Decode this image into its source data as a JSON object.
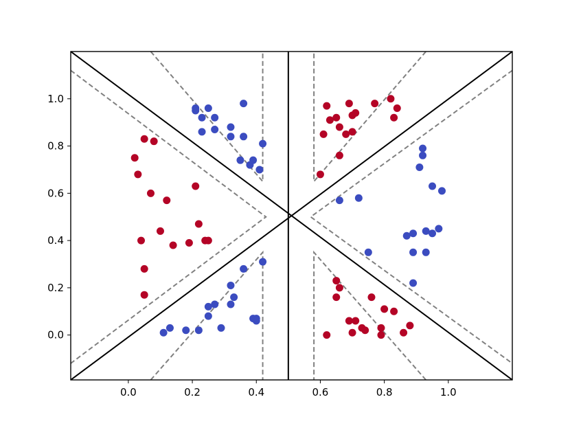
{
  "chart_data": {
    "type": "scatter",
    "title": "",
    "xlabel": "",
    "ylabel": "",
    "xlim": [
      -0.18,
      1.2
    ],
    "ylim": [
      -0.19,
      1.2
    ],
    "grid": false,
    "legend": "none",
    "x_ticks": [
      "0.0",
      "0.2",
      "0.4",
      "0.6",
      "0.8",
      "1.0"
    ],
    "y_ticks": [
      "0.0",
      "0.2",
      "0.4",
      "0.6",
      "0.8",
      "1.0"
    ],
    "colors": {
      "class_a": "#b40426",
      "class_b": "#3b4cc0",
      "boundary": "#000000",
      "margin": "#808080"
    },
    "series": [
      {
        "class": "a",
        "color": "#b40426",
        "points": [
          [
            0.05,
            0.83
          ],
          [
            0.08,
            0.82
          ],
          [
            0.02,
            0.75
          ],
          [
            0.03,
            0.68
          ],
          [
            0.07,
            0.6
          ],
          [
            0.12,
            0.57
          ],
          [
            0.21,
            0.63
          ],
          [
            0.22,
            0.47
          ],
          [
            0.1,
            0.44
          ],
          [
            0.04,
            0.4
          ],
          [
            0.14,
            0.38
          ],
          [
            0.19,
            0.39
          ],
          [
            0.24,
            0.4
          ],
          [
            0.25,
            0.4
          ],
          [
            0.05,
            0.28
          ],
          [
            0.05,
            0.17
          ],
          [
            0.62,
            0.97
          ],
          [
            0.63,
            0.91
          ],
          [
            0.65,
            0.92
          ],
          [
            0.66,
            0.88
          ],
          [
            0.69,
            0.98
          ],
          [
            0.7,
            0.93
          ],
          [
            0.71,
            0.94
          ],
          [
            0.77,
            0.98
          ],
          [
            0.82,
            1.0
          ],
          [
            0.84,
            0.96
          ],
          [
            0.83,
            0.92
          ],
          [
            0.61,
            0.85
          ],
          [
            0.68,
            0.85
          ],
          [
            0.7,
            0.86
          ],
          [
            0.66,
            0.76
          ],
          [
            0.6,
            0.68
          ],
          [
            0.65,
            0.23
          ],
          [
            0.66,
            0.2
          ],
          [
            0.65,
            0.16
          ],
          [
            0.76,
            0.16
          ],
          [
            0.8,
            0.11
          ],
          [
            0.83,
            0.1
          ],
          [
            0.69,
            0.06
          ],
          [
            0.71,
            0.06
          ],
          [
            0.73,
            0.03
          ],
          [
            0.74,
            0.02
          ],
          [
            0.7,
            0.01
          ],
          [
            0.62,
            0.0
          ],
          [
            0.79,
            0.03
          ],
          [
            0.79,
            0.0
          ],
          [
            0.86,
            0.01
          ],
          [
            0.88,
            0.04
          ]
        ]
      },
      {
        "class": "b",
        "color": "#3b4cc0",
        "points": [
          [
            0.36,
            0.98
          ],
          [
            0.21,
            0.95
          ],
          [
            0.21,
            0.96
          ],
          [
            0.25,
            0.96
          ],
          [
            0.23,
            0.92
          ],
          [
            0.27,
            0.92
          ],
          [
            0.23,
            0.86
          ],
          [
            0.27,
            0.87
          ],
          [
            0.32,
            0.88
          ],
          [
            0.32,
            0.84
          ],
          [
            0.36,
            0.84
          ],
          [
            0.42,
            0.81
          ],
          [
            0.35,
            0.74
          ],
          [
            0.38,
            0.72
          ],
          [
            0.39,
            0.74
          ],
          [
            0.41,
            0.7
          ],
          [
            0.92,
            0.79
          ],
          [
            0.92,
            0.76
          ],
          [
            0.91,
            0.71
          ],
          [
            0.95,
            0.63
          ],
          [
            0.98,
            0.61
          ],
          [
            0.66,
            0.57
          ],
          [
            0.72,
            0.58
          ],
          [
            0.87,
            0.42
          ],
          [
            0.89,
            0.43
          ],
          [
            0.93,
            0.44
          ],
          [
            0.95,
            0.43
          ],
          [
            0.97,
            0.45
          ],
          [
            0.75,
            0.35
          ],
          [
            0.89,
            0.35
          ],
          [
            0.93,
            0.35
          ],
          [
            0.89,
            0.22
          ],
          [
            0.42,
            0.31
          ],
          [
            0.36,
            0.28
          ],
          [
            0.32,
            0.21
          ],
          [
            0.33,
            0.16
          ],
          [
            0.32,
            0.13
          ],
          [
            0.27,
            0.13
          ],
          [
            0.25,
            0.12
          ],
          [
            0.25,
            0.08
          ],
          [
            0.4,
            0.07
          ],
          [
            0.39,
            0.07
          ],
          [
            0.4,
            0.06
          ],
          [
            0.13,
            0.03
          ],
          [
            0.11,
            0.01
          ],
          [
            0.18,
            0.02
          ],
          [
            0.22,
            0.02
          ],
          [
            0.29,
            0.03
          ]
        ]
      }
    ],
    "boundaries": [
      {
        "style": "solid",
        "x1": -0.18,
        "y1": 1.2,
        "x2": 1.2,
        "y2": -0.19
      },
      {
        "style": "solid",
        "x1": -0.18,
        "y1": -0.19,
        "x2": 1.2,
        "y2": 1.2
      },
      {
        "style": "solid",
        "x1": 0.5,
        "y1": -0.19,
        "x2": 1.2,
        "y2": -0.19,
        "vertical_at": 0.5
      }
    ],
    "margins": [
      {
        "points": [
          [
            -0.18,
            1.12
          ],
          [
            0.43,
            0.5
          ],
          [
            -0.18,
            -0.12
          ]
        ]
      },
      {
        "points": [
          [
            1.2,
            1.12
          ],
          [
            0.57,
            0.5
          ],
          [
            1.2,
            -0.12
          ]
        ]
      },
      {
        "points": [
          [
            0.07,
            1.2
          ],
          [
            0.42,
            0.65
          ],
          [
            0.42,
            1.2
          ]
        ]
      },
      {
        "points": [
          [
            0.93,
            1.2
          ],
          [
            0.58,
            0.65
          ],
          [
            0.58,
            1.2
          ]
        ]
      },
      {
        "points": [
          [
            0.07,
            -0.19
          ],
          [
            0.42,
            0.35
          ],
          [
            0.42,
            -0.19
          ]
        ]
      },
      {
        "points": [
          [
            0.93,
            -0.19
          ],
          [
            0.58,
            0.35
          ],
          [
            0.58,
            -0.19
          ]
        ]
      }
    ]
  }
}
